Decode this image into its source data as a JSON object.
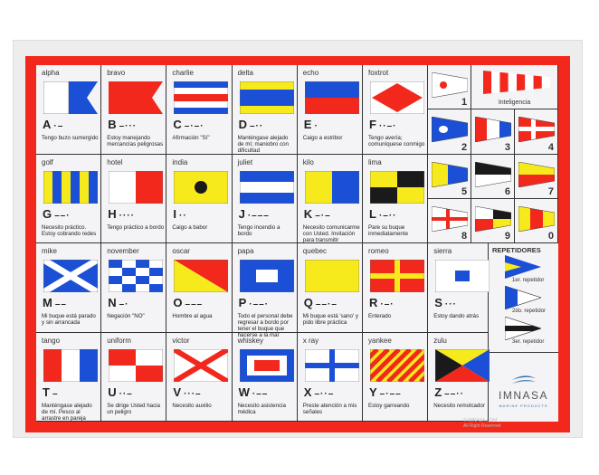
{
  "flags": [
    {
      "name": "alpha",
      "letter": "A",
      "morse": "·–",
      "desc": "Tengo buzo sumergido"
    },
    {
      "name": "bravo",
      "letter": "B",
      "morse": "–···",
      "desc": "Estoy manejando mercancías peligrosas"
    },
    {
      "name": "charlie",
      "letter": "C",
      "morse": "–·–·",
      "desc": "Afirmación \"Sí\""
    },
    {
      "name": "delta",
      "letter": "D",
      "morse": "–··",
      "desc": "Manténgase alejado de mí; maniobro con dificultad"
    },
    {
      "name": "echo",
      "letter": "E",
      "morse": "·",
      "desc": "Caigo a estribor"
    },
    {
      "name": "foxtrot",
      "letter": "F",
      "morse": "··–·",
      "desc": "Tengo avería; comuníquese conmigo"
    },
    {
      "name": "golf",
      "letter": "G",
      "morse": "––·",
      "desc": "Necesito práctico. Estoy cobrando redes"
    },
    {
      "name": "hotel",
      "letter": "H",
      "morse": "····",
      "desc": "Tengo práctico a bordo"
    },
    {
      "name": "india",
      "letter": "I",
      "morse": "··",
      "desc": "Caigo a babor"
    },
    {
      "name": "juliet",
      "letter": "J",
      "morse": "·–––",
      "desc": "Tengo incendio a bordo"
    },
    {
      "name": "kilo",
      "letter": "K",
      "morse": "–·–",
      "desc": "Necesito comunicarme con Usted. Invitación para transmitir"
    },
    {
      "name": "lima",
      "letter": "L",
      "morse": "·–··",
      "desc": "Pare su buque inmediatamente"
    },
    {
      "name": "mike",
      "letter": "M",
      "morse": "––",
      "desc": "Mi buque está parado y sin arrancada"
    },
    {
      "name": "november",
      "letter": "N",
      "morse": "–·",
      "desc": "Negación \"NO\""
    },
    {
      "name": "oscar",
      "letter": "O",
      "morse": "–––",
      "desc": "Hombre al agua"
    },
    {
      "name": "papa",
      "letter": "P",
      "morse": "·––·",
      "desc": "Todo el personal debe regresar a bordo por tener el buque que hacerse a la mar"
    },
    {
      "name": "quebec",
      "letter": "Q",
      "morse": "––·–",
      "desc": "Mi buque está 'sano' y pido libre práctica"
    },
    {
      "name": "romeo",
      "letter": "R",
      "morse": "·–·",
      "desc": "Enterado"
    },
    {
      "name": "sierra",
      "letter": "S",
      "morse": "···",
      "desc": "Estoy dando atrás"
    },
    {
      "name": "tango",
      "letter": "T",
      "morse": "–",
      "desc": "Manténgase alejado de mí. Pesco al arrastre en pareja"
    },
    {
      "name": "uniform",
      "letter": "U",
      "morse": "··–",
      "desc": "Se dirige Usted hacia un peligro"
    },
    {
      "name": "victor",
      "letter": "V",
      "morse": "···–",
      "desc": "Necesito auxilio"
    },
    {
      "name": "whiskey",
      "letter": "W",
      "morse": "·––",
      "desc": "Necesito asistencia médica"
    },
    {
      "name": "x ray",
      "letter": "X",
      "morse": "–··–",
      "desc": "Preste atención a mis señales"
    },
    {
      "name": "yankee",
      "letter": "Y",
      "morse": "–·––",
      "desc": "Estoy garreando"
    },
    {
      "name": "zulu",
      "letter": "Z",
      "morse": "––··",
      "desc": "Necesito remolcador"
    }
  ],
  "pennants": {
    "intelligence_label": "Inteligencia",
    "numbers": [
      "1",
      "2",
      "3",
      "4",
      "5",
      "6",
      "7",
      "8",
      "9",
      "0"
    ]
  },
  "repeaters": {
    "title": "REPETIDORES",
    "items": [
      "1er. repetidor",
      "2do. repetidor",
      "3er. repetidor"
    ]
  },
  "logo": {
    "brand": "IMNASA",
    "tagline": "MARINE PRODUCTS"
  },
  "copyright": {
    "line1": "© IMNASA.COM",
    "line2": "All Right Reserved"
  },
  "colors": {
    "red": "#f2281c",
    "blue": "#1a4fd6",
    "yellow": "#f7ea1c",
    "black": "#1a1a1a",
    "white": "#ffffff"
  }
}
